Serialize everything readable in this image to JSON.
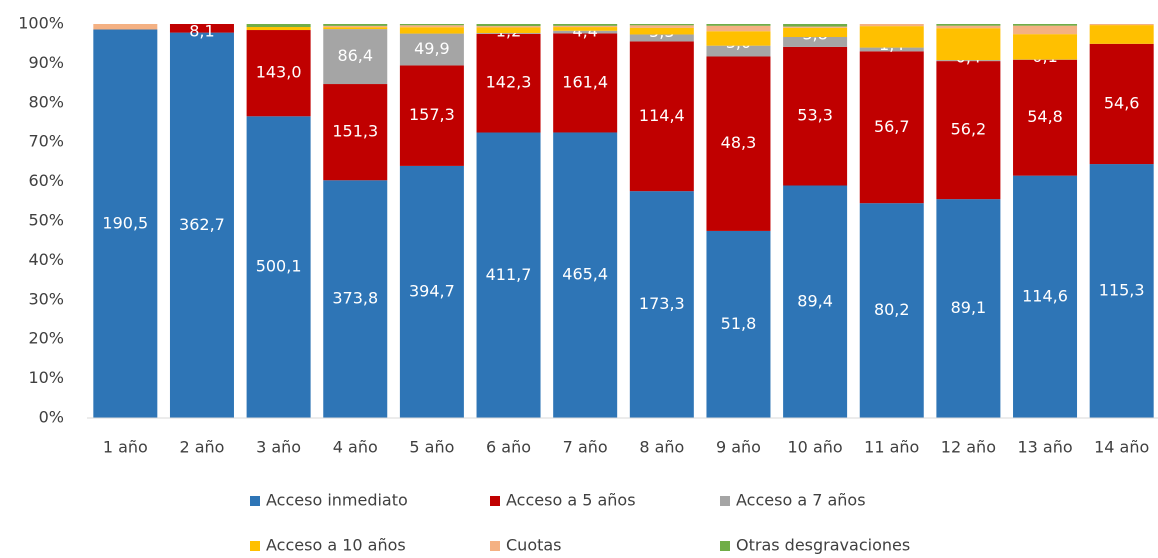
{
  "chart_data": {
    "type": "bar",
    "stacked": "percent",
    "categories": [
      "1 año",
      "2 año",
      "3 año",
      "4 año",
      "5 año",
      "6 año",
      "7 año",
      "8 año",
      "9 año",
      "10 año",
      "11 año",
      "12 año",
      "13 año",
      "14 año"
    ],
    "ylim": [
      0,
      100
    ],
    "yticks": [
      {
        "value": 0,
        "label": "0%"
      },
      {
        "value": 10,
        "label": "10%"
      },
      {
        "value": 20,
        "label": "20%"
      },
      {
        "value": 30,
        "label": "30%"
      },
      {
        "value": 40,
        "label": "40%"
      },
      {
        "value": 50,
        "label": "50%"
      },
      {
        "value": 60,
        "label": "60%"
      },
      {
        "value": 70,
        "label": "70%"
      },
      {
        "value": 80,
        "label": "80%"
      },
      {
        "value": 90,
        "label": "90%"
      },
      {
        "value": 100,
        "label": "100%"
      }
    ],
    "grid": false,
    "series": [
      {
        "name": "Acceso inmediato",
        "color": "#2e75b6",
        "values": [
          190.5,
          362.7,
          500.1,
          373.8,
          394.7,
          411.7,
          465.4,
          173.3,
          51.8,
          89.4,
          80.2,
          89.1,
          114.6,
          115.3
        ],
        "value_labels": [
          "190,5",
          "362,7",
          "500,1",
          "373,8",
          "394,7",
          "411,7",
          "465,4",
          "173,3",
          "51,8",
          "89,4",
          "80,2",
          "89,1",
          "114,6",
          "115,3"
        ]
      },
      {
        "name": "Acceso a 5 años",
        "color": "#c00000",
        "values": [
          0,
          8.1,
          143.0,
          151.3,
          157.3,
          142.3,
          161.4,
          114.4,
          48.3,
          53.3,
          56.7,
          56.2,
          54.8,
          54.6
        ],
        "value_labels": [
          null,
          "8,1",
          "143,0",
          "151,3",
          "157,3",
          "142,3",
          "161,4",
          "114,4",
          "48,3",
          "53,3",
          "56,7",
          "56,2",
          "54,8",
          "54,6"
        ]
      },
      {
        "name": "Acceso a 7 años",
        "color": "#a5a5a5",
        "values": [
          0,
          0,
          0,
          86.4,
          49.9,
          1.2,
          4.4,
          5.3,
          3.0,
          3.8,
          1.4,
          0.4,
          0.1,
          0
        ],
        "value_labels": [
          null,
          null,
          null,
          "86,4",
          "49,9",
          "1,2",
          "4,4",
          "5,3",
          "3,0",
          "3,8",
          "1,4",
          "0,4",
          "0,1",
          null
        ]
      },
      {
        "name": "Acceso a 10 años",
        "color": "#ffc000",
        "values": [
          0,
          0,
          5,
          3,
          10,
          8,
          6,
          5,
          4,
          3.5,
          8,
          13,
          12,
          8.5
        ]
      },
      {
        "name": "Cuotas",
        "color": "#f4b183",
        "values": [
          2.7,
          0,
          0,
          2,
          3,
          2,
          2,
          2,
          1.5,
          0.5,
          0.8,
          1,
          4,
          0.5
        ]
      },
      {
        "name": "Otras desgravaciones",
        "color": "#70ad47",
        "values": [
          0,
          0,
          5,
          3,
          2,
          3,
          3,
          1,
          0.5,
          1,
          0,
          0.7,
          0.8,
          0
        ]
      }
    ]
  }
}
